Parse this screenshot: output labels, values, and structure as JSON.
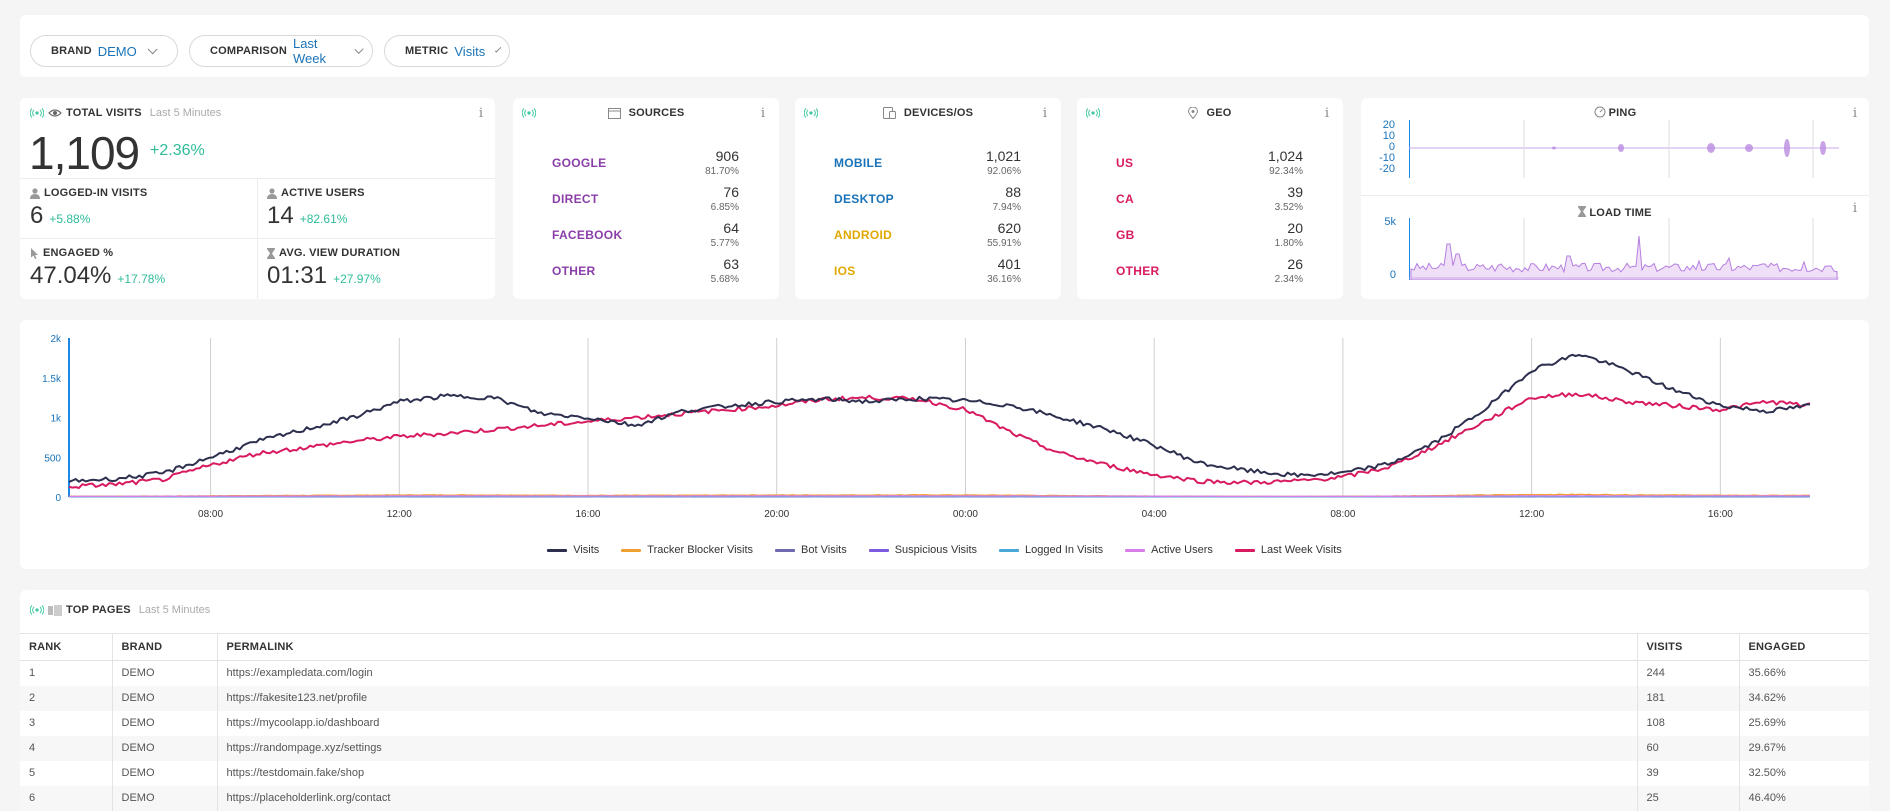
{
  "filters": [
    {
      "label": "BRAND",
      "value": "DEMO"
    },
    {
      "label": "COMPARISON",
      "value": "Last Week"
    },
    {
      "label": "METRIC",
      "value": "Visits"
    }
  ],
  "total": {
    "title": "TOTAL VISITS",
    "subtitle": "Last 5 Minutes",
    "value": "1,109",
    "change": "+2.36%"
  },
  "metrics": [
    {
      "title": "LOGGED-IN VISITS",
      "value": "6",
      "change": "+5.88%",
      "icon": "user-icon"
    },
    {
      "title": "ACTIVE USERS",
      "value": "14",
      "change": "+82.61%",
      "icon": "user-icon"
    },
    {
      "title": "ENGAGED %",
      "value": "47.04%",
      "change": "+17.78%",
      "icon": "pointer-icon"
    },
    {
      "title": "AVG. VIEW DURATION",
      "value": "01:31",
      "change": "+27.97%",
      "icon": "hourglass-icon"
    }
  ],
  "sources": {
    "title": "SOURCES",
    "color": "#8a3fa8",
    "items": [
      {
        "name": "GOOGLE",
        "count": "906",
        "pct": "81.70%"
      },
      {
        "name": "DIRECT",
        "count": "76",
        "pct": "6.85%"
      },
      {
        "name": "FACEBOOK",
        "count": "64",
        "pct": "5.77%"
      },
      {
        "name": "OTHER",
        "count": "63",
        "pct": "5.68%"
      }
    ]
  },
  "devices": {
    "title": "DEVICES/OS",
    "items": [
      {
        "name": "MOBILE",
        "count": "1,021",
        "pct": "92.06%",
        "color": "#1a73b8"
      },
      {
        "name": "DESKTOP",
        "count": "88",
        "pct": "7.94%",
        "color": "#1a73b8"
      },
      {
        "name": "ANDROID",
        "count": "620",
        "pct": "55.91%",
        "color": "#e0a800"
      },
      {
        "name": "IOS",
        "count": "401",
        "pct": "36.16%",
        "color": "#e0a800"
      }
    ]
  },
  "geo": {
    "title": "GEO",
    "color": "#d81b60",
    "items": [
      {
        "name": "US",
        "count": "1,024",
        "pct": "92.34%"
      },
      {
        "name": "CA",
        "count": "39",
        "pct": "3.52%"
      },
      {
        "name": "GB",
        "count": "20",
        "pct": "1.80%"
      },
      {
        "name": "OTHER",
        "count": "26",
        "pct": "2.34%"
      }
    ]
  },
  "ping": {
    "title": "PING",
    "yticks": [
      "20",
      "10",
      "0",
      "-10",
      "-20"
    ]
  },
  "load_time": {
    "title": "LOAD TIME",
    "yticks": [
      "5k",
      "0"
    ]
  },
  "chart_data": {
    "type": "line",
    "x_ticks": [
      "08:00",
      "12:00",
      "16:00",
      "20:00",
      "00:00",
      "04:00",
      "08:00",
      "12:00",
      "16:00"
    ],
    "ylim": [
      0,
      2000
    ],
    "y_ticks": [
      "2k",
      "1.5k",
      "1k",
      "500",
      "0"
    ],
    "y_tick_values": [
      2000,
      1500,
      1000,
      500,
      0
    ],
    "x_hours": [
      5.0,
      6,
      7,
      8,
      9,
      10,
      11,
      12,
      13,
      14,
      15,
      16,
      17,
      18,
      19,
      20,
      21,
      22,
      23,
      24,
      25,
      26,
      27,
      28,
      29,
      30,
      31,
      32,
      33,
      34,
      35,
      36,
      37,
      38,
      39,
      40,
      41,
      41.9
    ],
    "series": [
      {
        "name": "Visits",
        "color": "#2d2f4e",
        "values": [
          200,
          230,
          300,
          500,
          700,
          850,
          1000,
          1200,
          1270,
          1250,
          1050,
          1000,
          900,
          1080,
          1150,
          1200,
          1230,
          1200,
          1240,
          1210,
          1150,
          1000,
          850,
          650,
          420,
          330,
          270,
          300,
          420,
          700,
          1100,
          1600,
          1800,
          1600,
          1350,
          1150,
          1080,
          1150
        ]
      },
      {
        "name": "Tracker Blocker Visits",
        "color": "#f0a030",
        "values": [
          10,
          10,
          12,
          15,
          18,
          20,
          22,
          25,
          25,
          25,
          22,
          20,
          20,
          22,
          24,
          25,
          25,
          25,
          26,
          25,
          22,
          18,
          15,
          12,
          10,
          8,
          8,
          10,
          12,
          18,
          25,
          30,
          32,
          28,
          25,
          22,
          20,
          20
        ]
      },
      {
        "name": "Bot Visits",
        "color": "#6d6ab0",
        "values": [
          5,
          5,
          5,
          6,
          6,
          7,
          7,
          8,
          8,
          8,
          7,
          7,
          7,
          7,
          8,
          8,
          8,
          8,
          8,
          8,
          7,
          7,
          6,
          6,
          5,
          5,
          5,
          5,
          6,
          7,
          8,
          9,
          9,
          8,
          8,
          7,
          7,
          7
        ]
      },
      {
        "name": "Suspicious Visits",
        "color": "#7b5ce0",
        "values": [
          2,
          2,
          2,
          3,
          3,
          3,
          3,
          3,
          3,
          3,
          3,
          3,
          3,
          3,
          3,
          3,
          3,
          3,
          3,
          3,
          3,
          3,
          3,
          2,
          2,
          2,
          2,
          2,
          3,
          3,
          3,
          3,
          3,
          3,
          3,
          3,
          3,
          3
        ]
      },
      {
        "name": "Logged In Visits",
        "color": "#4aa8d8",
        "values": [
          3,
          3,
          3,
          4,
          4,
          5,
          5,
          5,
          5,
          5,
          5,
          5,
          5,
          5,
          5,
          5,
          5,
          5,
          5,
          5,
          5,
          4,
          4,
          3,
          3,
          3,
          3,
          3,
          4,
          4,
          5,
          6,
          6,
          5,
          5,
          5,
          5,
          5
        ]
      },
      {
        "name": "Active Users",
        "color": "#d97ee8",
        "values": [
          8,
          8,
          9,
          10,
          11,
          12,
          13,
          14,
          14,
          14,
          13,
          13,
          13,
          13,
          14,
          14,
          14,
          14,
          14,
          14,
          13,
          12,
          11,
          10,
          9,
          8,
          8,
          8,
          9,
          11,
          13,
          15,
          15,
          14,
          14,
          14,
          14,
          14
        ]
      },
      {
        "name": "Last Week Visits",
        "color": "#d81b60",
        "values": [
          130,
          160,
          220,
          400,
          550,
          620,
          700,
          760,
          800,
          850,
          900,
          950,
          1000,
          1050,
          1100,
          1150,
          1230,
          1250,
          1230,
          1100,
          800,
          550,
          400,
          280,
          200,
          180,
          200,
          250,
          380,
          650,
          950,
          1250,
          1300,
          1200,
          1150,
          1100,
          1200,
          1150
        ]
      }
    ]
  },
  "top_pages": {
    "title": "TOP PAGES",
    "subtitle": "Last 5 Minutes",
    "columns": [
      "RANK",
      "BRAND",
      "PERMALINK",
      "VISITS",
      "ENGAGED"
    ],
    "rows": [
      [
        "1",
        "DEMO",
        "https://exampledata.com/login",
        "244",
        "35.66%"
      ],
      [
        "2",
        "DEMO",
        "https://fakesite123.net/profile",
        "181",
        "34.62%"
      ],
      [
        "3",
        "DEMO",
        "https://mycoolapp.io/dashboard",
        "108",
        "25.69%"
      ],
      [
        "4",
        "DEMO",
        "https://randompage.xyz/settings",
        "60",
        "29.67%"
      ],
      [
        "5",
        "DEMO",
        "https://testdomain.fake/shop",
        "39",
        "32.50%"
      ],
      [
        "6",
        "DEMO",
        "https://placeholderlink.org/contact",
        "25",
        "46.40%"
      ]
    ]
  }
}
